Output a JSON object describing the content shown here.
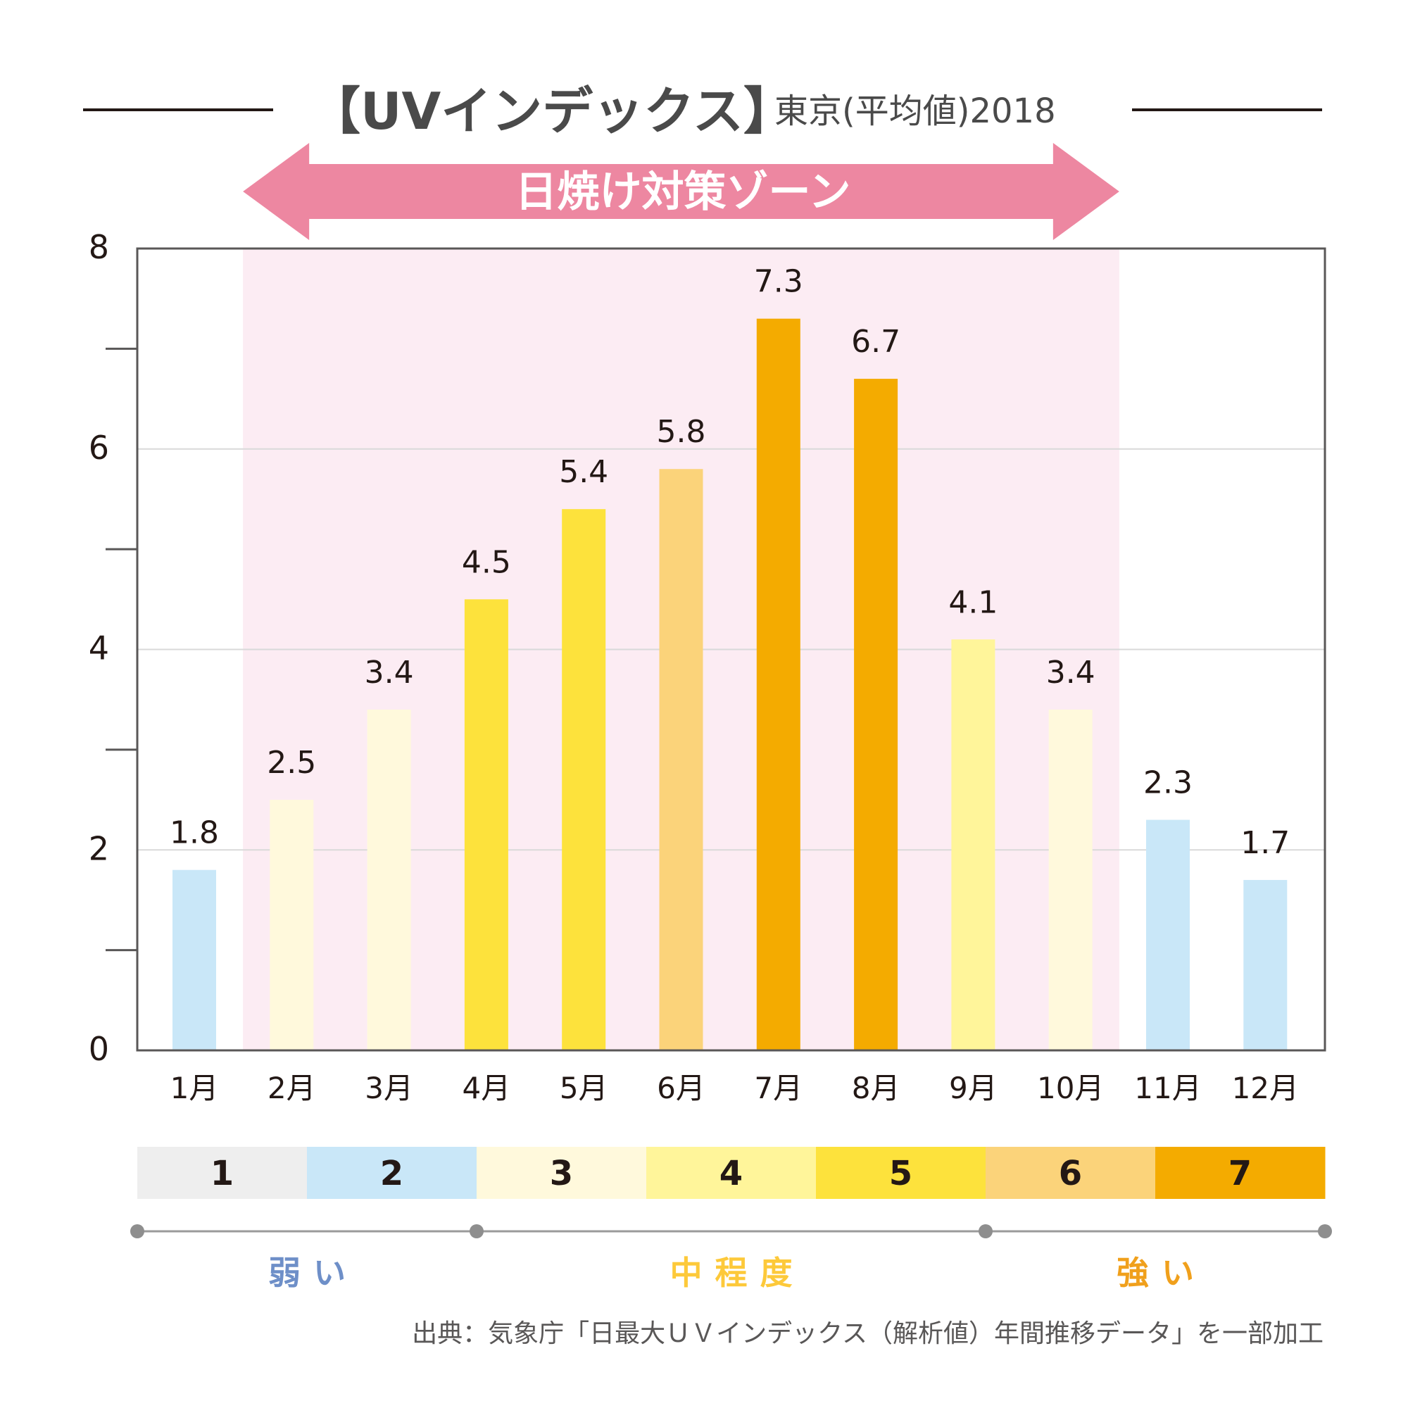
{
  "header": {
    "title": "【UVインデックス】",
    "subtitle": "東京(平均値)2018"
  },
  "zone": {
    "label": "日焼け対策ゾーン",
    "from_month": "2月",
    "to_month": "10月",
    "arrow_color": "#ed87a1",
    "fill_color": "#fcecf3"
  },
  "chart_data": {
    "type": "bar",
    "title": "【UVインデックス】東京(平均値)2018",
    "xlabel": "",
    "ylabel": "",
    "ylim": [
      0,
      8
    ],
    "yticks": [
      0,
      2,
      4,
      6,
      8
    ],
    "minor_yticks": [
      1,
      3,
      5,
      7
    ],
    "grid": true,
    "categories": [
      "1月",
      "2月",
      "3月",
      "4月",
      "5月",
      "6月",
      "7月",
      "8月",
      "9月",
      "10月",
      "11月",
      "12月"
    ],
    "values": [
      1.8,
      2.5,
      3.4,
      4.5,
      5.4,
      5.8,
      7.3,
      6.7,
      4.1,
      3.4,
      2.3,
      1.7
    ],
    "labels": [
      "1.8",
      "2.5",
      "3.4",
      "4.5",
      "5.4",
      "5.8",
      "7.3",
      "6.7",
      "4.1",
      "3.4",
      "2.3",
      "1.7"
    ],
    "bar_levels": [
      2,
      3,
      3,
      5,
      5,
      6,
      7,
      7,
      4,
      3,
      2,
      2
    ],
    "highlight_range": [
      "2月",
      "10月"
    ]
  },
  "scale": {
    "levels": [
      {
        "label": "1",
        "color": "#eeeeee"
      },
      {
        "label": "2",
        "color": "#c9e7f8"
      },
      {
        "label": "3",
        "color": "#fff9dc"
      },
      {
        "label": "4",
        "color": "#fff59a"
      },
      {
        "label": "5",
        "color": "#fde23c"
      },
      {
        "label": "6",
        "color": "#fbd37a"
      },
      {
        "label": "7",
        "color": "#f4ab00"
      }
    ],
    "categories": [
      {
        "label": "弱い",
        "color": "#6e8fc8",
        "from": 1,
        "to": 2
      },
      {
        "label": "中程度",
        "color": "#fdc93a",
        "from": 3,
        "to": 5
      },
      {
        "label": "強い",
        "color": "#f0a01c",
        "from": 6,
        "to": 7
      }
    ]
  },
  "source": "出典：気象庁「日最大ＵＶインデックス（解析値）年間推移データ」を一部加工"
}
